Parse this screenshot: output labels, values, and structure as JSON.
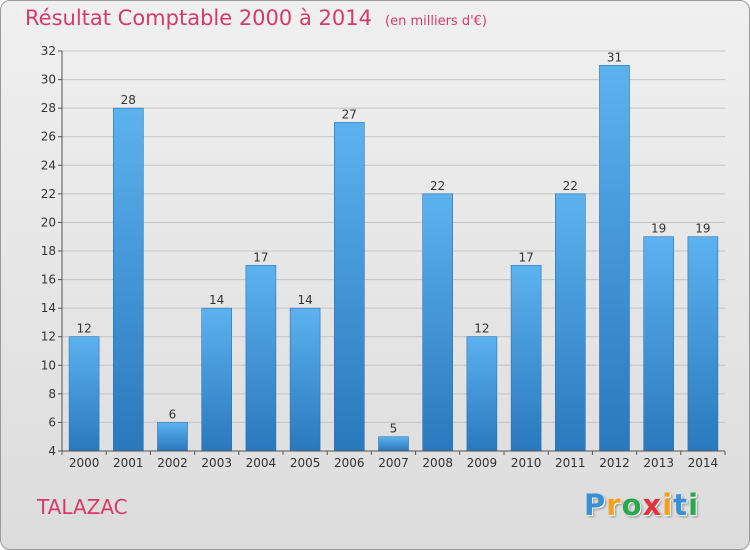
{
  "chart_data": {
    "type": "bar",
    "title": "Résultat Comptable 2000 à 2014",
    "subtitle": "(en milliers d'€)",
    "categories": [
      "2000",
      "2001",
      "2002",
      "2003",
      "2004",
      "2005",
      "2006",
      "2007",
      "2008",
      "2009",
      "2010",
      "2011",
      "2012",
      "2013",
      "2014"
    ],
    "values": [
      12,
      28,
      6,
      14,
      17,
      14,
      27,
      5,
      22,
      12,
      17,
      22,
      31,
      19,
      19
    ],
    "ylim": [
      4,
      32
    ],
    "yticks": [
      4,
      6,
      8,
      10,
      12,
      14,
      16,
      18,
      20,
      22,
      24,
      26,
      28,
      30,
      32
    ],
    "xlabel": "",
    "ylabel": "",
    "grid": true
  },
  "commune": "TALAZAC",
  "logo": {
    "letters": [
      "P",
      "r",
      "o",
      "x",
      "i",
      "t",
      "i"
    ],
    "colors": [
      "#3a8fd6",
      "#f2a020",
      "#2aa84a",
      "#e2333a",
      "#f2a020",
      "#3a8fd6",
      "#2aa84a"
    ]
  },
  "colors": {
    "bar": "#3f9de0",
    "bar_dark": "#2b7ac0",
    "title": "#d53a6a",
    "axis": "#555555"
  }
}
